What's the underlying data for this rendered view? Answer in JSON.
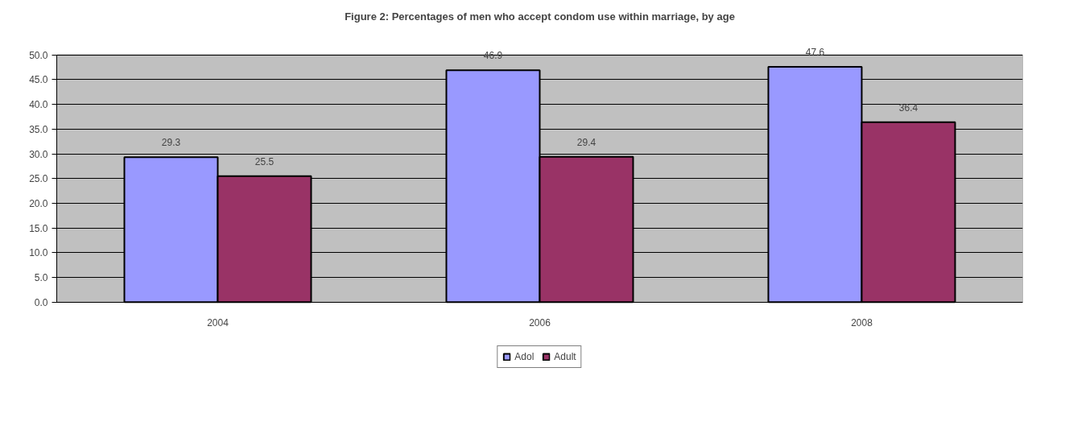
{
  "chart_data": {
    "type": "bar",
    "title": "Figure 2: Percentages of men who accept condom use within marriage, by age",
    "categories": [
      "2004",
      "2006",
      "2008"
    ],
    "series": [
      {
        "name": "Adol",
        "color": "#9999ff",
        "values": [
          29.3,
          46.9,
          47.6
        ]
      },
      {
        "name": "Adult",
        "color": "#993366",
        "values": [
          25.5,
          29.4,
          36.4
        ]
      }
    ],
    "ylim": [
      0,
      50
    ],
    "yticks": [
      {
        "value": 0,
        "label": "0.0"
      },
      {
        "value": 5,
        "label": "5.0"
      },
      {
        "value": 10,
        "label": "10.0"
      },
      {
        "value": 15,
        "label": "15.0"
      },
      {
        "value": 20,
        "label": "20.0"
      },
      {
        "value": 25,
        "label": "25.0"
      },
      {
        "value": 30,
        "label": "30.0"
      },
      {
        "value": 35,
        "label": "35.0"
      },
      {
        "value": 40,
        "label": "40.0"
      },
      {
        "value": 45,
        "label": "45.0"
      },
      {
        "value": 50,
        "label": "50.0"
      }
    ],
    "grid": "y",
    "legend": "bottom",
    "data_labels": true
  }
}
